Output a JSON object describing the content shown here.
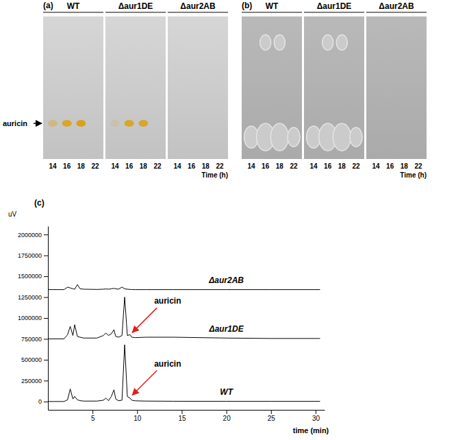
{
  "chart_data": [
    {
      "type": "tlc",
      "title": "(a)",
      "annotation": "auricin",
      "xlabel": "Time (h)",
      "color": "#d9a21b",
      "categories": [
        "14",
        "16",
        "18",
        "22"
      ],
      "series": [
        {
          "name": "WT",
          "values": [
            0.4,
            0.9,
            1.0,
            0
          ]
        },
        {
          "name": "Δaur1DE",
          "values": [
            0.15,
            0.9,
            0.9,
            0
          ]
        },
        {
          "name": "Δaur2AB",
          "values": [
            0,
            0,
            0,
            0
          ]
        }
      ]
    },
    {
      "type": "bioassay",
      "title": "(b)",
      "xlabel": "Time (h)",
      "color": "#cbcbcb",
      "categories": [
        "14",
        "16",
        "18",
        "22"
      ],
      "series": [
        {
          "name": "WT",
          "values": [
            0.8,
            1.0,
            1.0,
            0.7
          ],
          "upper_values": [
            0,
            0.8,
            0.8,
            0
          ]
        },
        {
          "name": "Δaur1DE",
          "values": [
            0.8,
            1.0,
            1.0,
            0.7
          ],
          "upper_values": [
            0,
            0.8,
            0.8,
            0
          ]
        },
        {
          "name": "Δaur2AB",
          "values": [
            0,
            0,
            0,
            0
          ],
          "upper_values": [
            0,
            0,
            0,
            0
          ]
        }
      ]
    },
    {
      "type": "line",
      "title": "(c)",
      "ylabel": "uV",
      "xlabel": "time (min)",
      "xlim": [
        0,
        31
      ],
      "xticks": [
        5,
        10,
        15,
        20,
        25,
        30
      ],
      "ylim": [
        -100000,
        2100000
      ],
      "yticks": [
        0,
        250000,
        500000,
        750000,
        1000000,
        1250000,
        1500000,
        1750000,
        2000000
      ],
      "x": [
        0,
        1.8,
        2.2,
        2.5,
        2.8,
        3.0,
        3.3,
        3.6,
        4,
        5.5,
        6.2,
        6.5,
        6.8,
        7.1,
        7.4,
        7.6,
        7.9,
        8.3,
        8.6,
        8.9,
        9.2,
        9.4,
        9.8,
        11,
        14,
        20,
        25,
        30,
        30.5
      ],
      "series": [
        {
          "name": "Δaur2AB",
          "color": "#000000",
          "values": [
            1340000,
            1340000,
            1370000,
            1360000,
            1350000,
            1345000,
            1400000,
            1350000,
            1345000,
            1342000,
            1345000,
            1348000,
            1345000,
            1350000,
            1355000,
            1350000,
            1345000,
            1370000,
            1350000,
            1345000,
            1342000,
            1341000,
            1340000,
            1340000,
            1340000,
            1340000,
            1340000,
            1340000,
            1340000
          ]
        },
        {
          "name": "Δaur1DE",
          "color": "#000000",
          "values": [
            750000,
            750000,
            800000,
            900000,
            790000,
            920000,
            780000,
            770000,
            760000,
            760000,
            790000,
            820000,
            790000,
            810000,
            860000,
            780000,
            770000,
            790000,
            1250000,
            790000,
            800000,
            770000,
            765000,
            770000,
            770000,
            760000,
            755000,
            755000,
            755000
          ]
        },
        {
          "name": "WT",
          "color": "#000000",
          "values": [
            0,
            0,
            20000,
            150000,
            30000,
            60000,
            20000,
            10000,
            5000,
            5000,
            15000,
            40000,
            10000,
            60000,
            140000,
            30000,
            10000,
            15000,
            680000,
            60000,
            40000,
            15000,
            8000,
            5000,
            3000,
            2000,
            2000,
            2000,
            2000
          ]
        }
      ],
      "annotations": [
        {
          "text": "auricin",
          "x": 9.3,
          "y": 810000,
          "color": "#e02020"
        },
        {
          "text": "auricin",
          "x": 9.3,
          "y": 60000,
          "color": "#e02020"
        }
      ]
    }
  ]
}
